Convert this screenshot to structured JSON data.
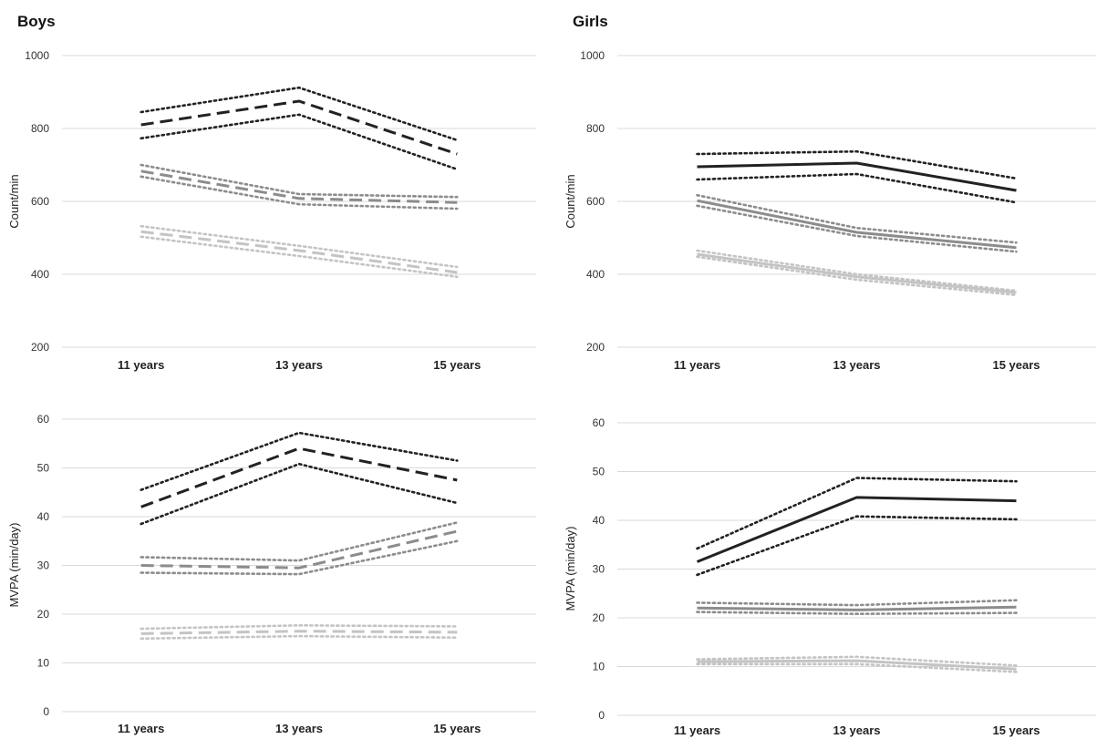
{
  "chart_data": [
    {
      "type": "line",
      "title": "Boys",
      "xlabel": "",
      "ylabel": "Count/min",
      "categories": [
        "11 years",
        "13 years",
        "15 years"
      ],
      "ylim": [
        200,
        1000
      ],
      "yticks": [
        200,
        400,
        600,
        800,
        1000
      ],
      "grid": true,
      "series": [
        {
          "values": [
            810,
            875,
            730
          ],
          "color": "#222222",
          "style": "dashed"
        },
        {
          "values": [
            845,
            912,
            768
          ],
          "color": "#222222",
          "style": "dotted"
        },
        {
          "values": [
            773,
            838,
            688
          ],
          "color": "#222222",
          "style": "dotted"
        },
        {
          "values": [
            683,
            608,
            597
          ],
          "color": "#8c8c8c",
          "style": "dashed"
        },
        {
          "values": [
            700,
            620,
            612
          ],
          "color": "#8c8c8c",
          "style": "dotted"
        },
        {
          "values": [
            668,
            592,
            580
          ],
          "color": "#8c8c8c",
          "style": "dotted"
        },
        {
          "values": [
            517,
            465,
            405
          ],
          "color": "#c4c4c4",
          "style": "dashed"
        },
        {
          "values": [
            532,
            478,
            420
          ],
          "color": "#c4c4c4",
          "style": "dotted"
        },
        {
          "values": [
            503,
            450,
            393
          ],
          "color": "#c4c4c4",
          "style": "dotted"
        }
      ]
    },
    {
      "type": "line",
      "title": "Girls",
      "xlabel": "",
      "ylabel": "Count/min",
      "categories": [
        "11 years",
        "13 years",
        "15 years"
      ],
      "ylim": [
        200,
        1000
      ],
      "yticks": [
        200,
        400,
        600,
        800,
        1000
      ],
      "grid": true,
      "series": [
        {
          "values": [
            695,
            705,
            630
          ],
          "color": "#222222",
          "style": "solid"
        },
        {
          "values": [
            730,
            737,
            663
          ],
          "color": "#222222",
          "style": "dotted"
        },
        {
          "values": [
            660,
            675,
            597
          ],
          "color": "#222222",
          "style": "dotted"
        },
        {
          "values": [
            602,
            515,
            473
          ],
          "color": "#8c8c8c",
          "style": "solid"
        },
        {
          "values": [
            617,
            527,
            487
          ],
          "color": "#8c8c8c",
          "style": "dotted"
        },
        {
          "values": [
            588,
            505,
            462
          ],
          "color": "#8c8c8c",
          "style": "dotted"
        },
        {
          "values": [
            455,
            393,
            350
          ],
          "color": "#c4c4c4",
          "style": "solid"
        },
        {
          "values": [
            465,
            400,
            355
          ],
          "color": "#c4c4c4",
          "style": "dotted"
        },
        {
          "values": [
            448,
            385,
            343
          ],
          "color": "#c4c4c4",
          "style": "dotted"
        }
      ]
    },
    {
      "type": "line",
      "title": "",
      "xlabel": "",
      "ylabel": "MVPA (min/day)",
      "categories": [
        "11 years",
        "13 years",
        "15 years"
      ],
      "ylim": [
        0,
        60
      ],
      "yticks": [
        0,
        10,
        20,
        30,
        40,
        50,
        60
      ],
      "grid": true,
      "series": [
        {
          "values": [
            42,
            54,
            47.5
          ],
          "color": "#222222",
          "style": "dashed"
        },
        {
          "values": [
            45.5,
            57.2,
            51.5
          ],
          "color": "#222222",
          "style": "dotted"
        },
        {
          "values": [
            38.5,
            50.8,
            42.8
          ],
          "color": "#222222",
          "style": "dotted"
        },
        {
          "values": [
            30,
            29.5,
            37
          ],
          "color": "#8c8c8c",
          "style": "dashed"
        },
        {
          "values": [
            31.7,
            31,
            38.8
          ],
          "color": "#8c8c8c",
          "style": "dotted"
        },
        {
          "values": [
            28.5,
            28.2,
            35
          ],
          "color": "#8c8c8c",
          "style": "dotted"
        },
        {
          "values": [
            16,
            16.5,
            16.3
          ],
          "color": "#c4c4c4",
          "style": "dashed"
        },
        {
          "values": [
            17,
            17.7,
            17.5
          ],
          "color": "#c4c4c4",
          "style": "dotted"
        },
        {
          "values": [
            15,
            15.5,
            15.2
          ],
          "color": "#c4c4c4",
          "style": "dotted"
        }
      ]
    },
    {
      "type": "line",
      "title": "",
      "xlabel": "",
      "ylabel": "MVPA (min/day)",
      "categories": [
        "11 years",
        "13 years",
        "15 years"
      ],
      "ylim": [
        0,
        60
      ],
      "yticks": [
        0,
        10,
        20,
        30,
        40,
        50,
        60
      ],
      "grid": true,
      "series": [
        {
          "values": [
            31.5,
            44.7,
            44
          ],
          "color": "#222222",
          "style": "solid"
        },
        {
          "values": [
            34.2,
            48.7,
            48
          ],
          "color": "#222222",
          "style": "dotted"
        },
        {
          "values": [
            28.8,
            40.8,
            40.2
          ],
          "color": "#222222",
          "style": "dotted"
        },
        {
          "values": [
            22,
            21.6,
            22.2
          ],
          "color": "#8c8c8c",
          "style": "solid"
        },
        {
          "values": [
            23.1,
            22.6,
            23.6
          ],
          "color": "#8c8c8c",
          "style": "dotted"
        },
        {
          "values": [
            21.2,
            20.8,
            21
          ],
          "color": "#8c8c8c",
          "style": "dotted"
        },
        {
          "values": [
            11,
            11.2,
            9.5
          ],
          "color": "#c4c4c4",
          "style": "solid"
        },
        {
          "values": [
            11.5,
            12,
            10.2
          ],
          "color": "#c4c4c4",
          "style": "dotted"
        },
        {
          "values": [
            10.5,
            10.5,
            8.9
          ],
          "color": "#c4c4c4",
          "style": "dotted"
        }
      ]
    }
  ]
}
